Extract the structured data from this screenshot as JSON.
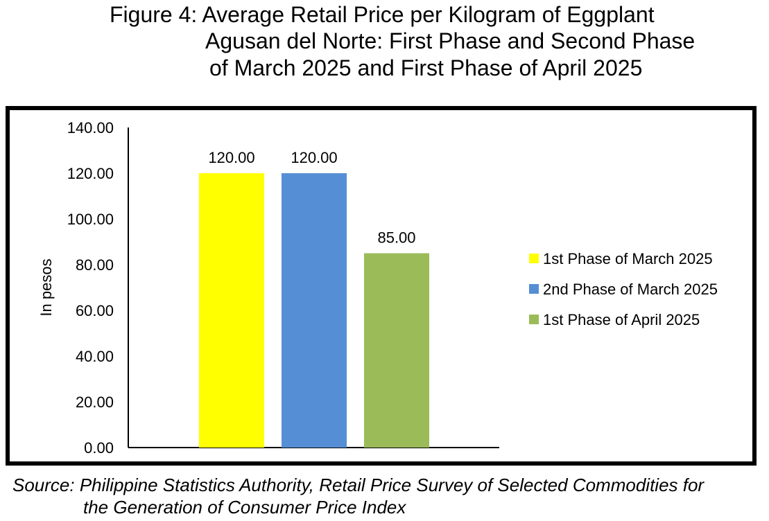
{
  "title_lines": [
    "Figure 4: Average Retail Price per Kilogram of Eggplant",
    "Agusan del Norte: First Phase and Second Phase",
    "of March 2025 and First Phase of April 2025"
  ],
  "source_lines": [
    "Source: Philippine Statistics Authority, Retail Price Survey of Selected Commodities for",
    "the Generation of Consumer Price Index"
  ],
  "chart_data": {
    "type": "bar",
    "title": "Figure 4: Average Retail Price per Kilogram of Eggplant Agusan del Norte: First Phase and Second Phase of March 2025 and First Phase of April 2025",
    "ylabel": "In pesos",
    "xlabel": "",
    "ylim": [
      0,
      140
    ],
    "yticks": [
      "0.00",
      "20.00",
      "40.00",
      "60.00",
      "80.00",
      "100.00",
      "120.00",
      "140.00"
    ],
    "grid": false,
    "legend_position": "right",
    "series": [
      {
        "name": "1st Phase of March 2025",
        "value": 120,
        "label": "120.00",
        "color": "#FFFF00"
      },
      {
        "name": "2nd Phase of March 2025",
        "value": 120,
        "label": "120.00",
        "color": "#558ED5"
      },
      {
        "name": "1st Phase of April 2025",
        "value": 85,
        "label": "85.00",
        "color": "#9BBB59"
      }
    ]
  }
}
